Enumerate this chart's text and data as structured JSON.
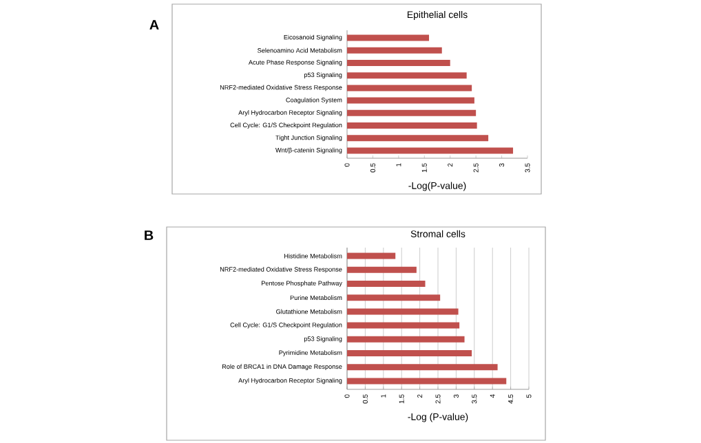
{
  "chart_data": [
    {
      "type": "bar",
      "orientation": "horizontal",
      "title": "Epithelial cells",
      "xlabel": "-Log(P-value)",
      "annotations": [
        "A"
      ],
      "categories": [
        "Eicosanoid Signaling",
        "Selenoamino Acid Metabolism",
        "Acute Phase Response Signaling",
        "p53 Signaling",
        "NRF2-mediated Oxidative Stress Response",
        "Coagulation System",
        "Aryl Hydrocarbon Receptor Signaling",
        "Cell Cycle: G1/S Checkpoint Regulation",
        "Tight Junction Signaling",
        "Wnt/β-catenin Signaling"
      ],
      "values": [
        1.59,
        1.84,
        2.0,
        2.32,
        2.42,
        2.47,
        2.5,
        2.52,
        2.74,
        3.22
      ],
      "color": "#c0504d",
      "xlim": [
        0,
        3.5
      ],
      "xticks": [
        0,
        0.5,
        1,
        1.5,
        2,
        2.5,
        3,
        3.5
      ],
      "grid": false
    },
    {
      "type": "bar",
      "orientation": "horizontal",
      "title": "Stromal cells",
      "xlabel": "-Log (P-value)",
      "annotations": [
        "B"
      ],
      "categories": [
        "Histidine Metabolism",
        "NRF2-mediated Oxidative Stress Response",
        "Pentose Phosphate Pathway",
        "Purine Metabolism",
        "Glutathione Metabolism",
        "Cell Cycle: G1/S Checkpoint Regulation",
        "p53 Signaling",
        "Pyrimidine Metabolism",
        "Role of BRCA1 in DNA Damage Response",
        "Aryl Hydrocarbon Receptor Signaling"
      ],
      "values": [
        1.33,
        1.91,
        2.15,
        2.56,
        3.06,
        3.09,
        3.23,
        3.43,
        4.14,
        4.38
      ],
      "color": "#c0504d",
      "xlim": [
        0,
        5
      ],
      "xticks": [
        0,
        0.5,
        1,
        1.5,
        2,
        2.5,
        3,
        3.5,
        4,
        4.5,
        5
      ],
      "grid": "x"
    }
  ]
}
